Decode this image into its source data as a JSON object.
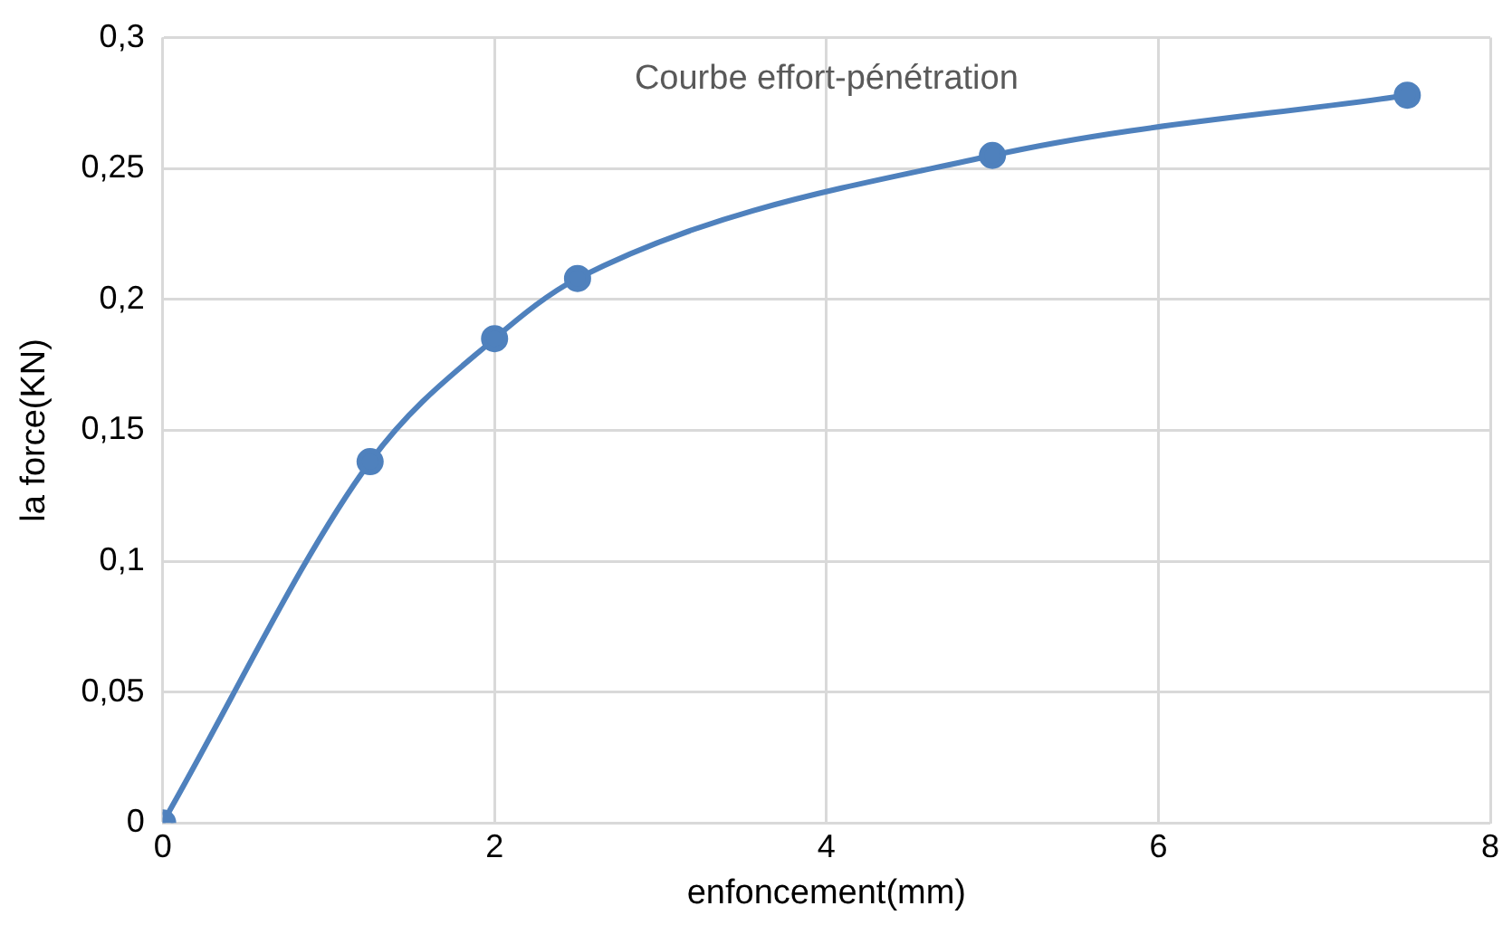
{
  "chart_data": {
    "type": "line",
    "title": "Courbe effort-pénétration",
    "xlabel": "enfoncement(mm)",
    "ylabel": "la force(KN)",
    "x": [
      0,
      1.25,
      2,
      2.5,
      5,
      7.5
    ],
    "series": [
      {
        "color": "#4f81bd",
        "values": [
          0,
          0.138,
          0.185,
          0.208,
          0.255,
          0.278
        ]
      }
    ],
    "xlim": [
      0,
      8
    ],
    "xticks": [
      0,
      2,
      4,
      6,
      8
    ],
    "ylim": [
      0,
      0.3
    ],
    "yticks": [
      0,
      {
        "value": 0.05,
        "label": "0,05"
      },
      {
        "value": 0.1,
        "label": "0,1"
      },
      {
        "value": 0.15,
        "label": "0,15"
      },
      {
        "value": 0.2,
        "label": "0,2"
      },
      {
        "value": 0.25,
        "label": "0,25"
      },
      {
        "value": 0.3,
        "label": "0,3"
      }
    ],
    "grid": true,
    "marker": "circle",
    "line_style": "solid",
    "legend": false
  }
}
